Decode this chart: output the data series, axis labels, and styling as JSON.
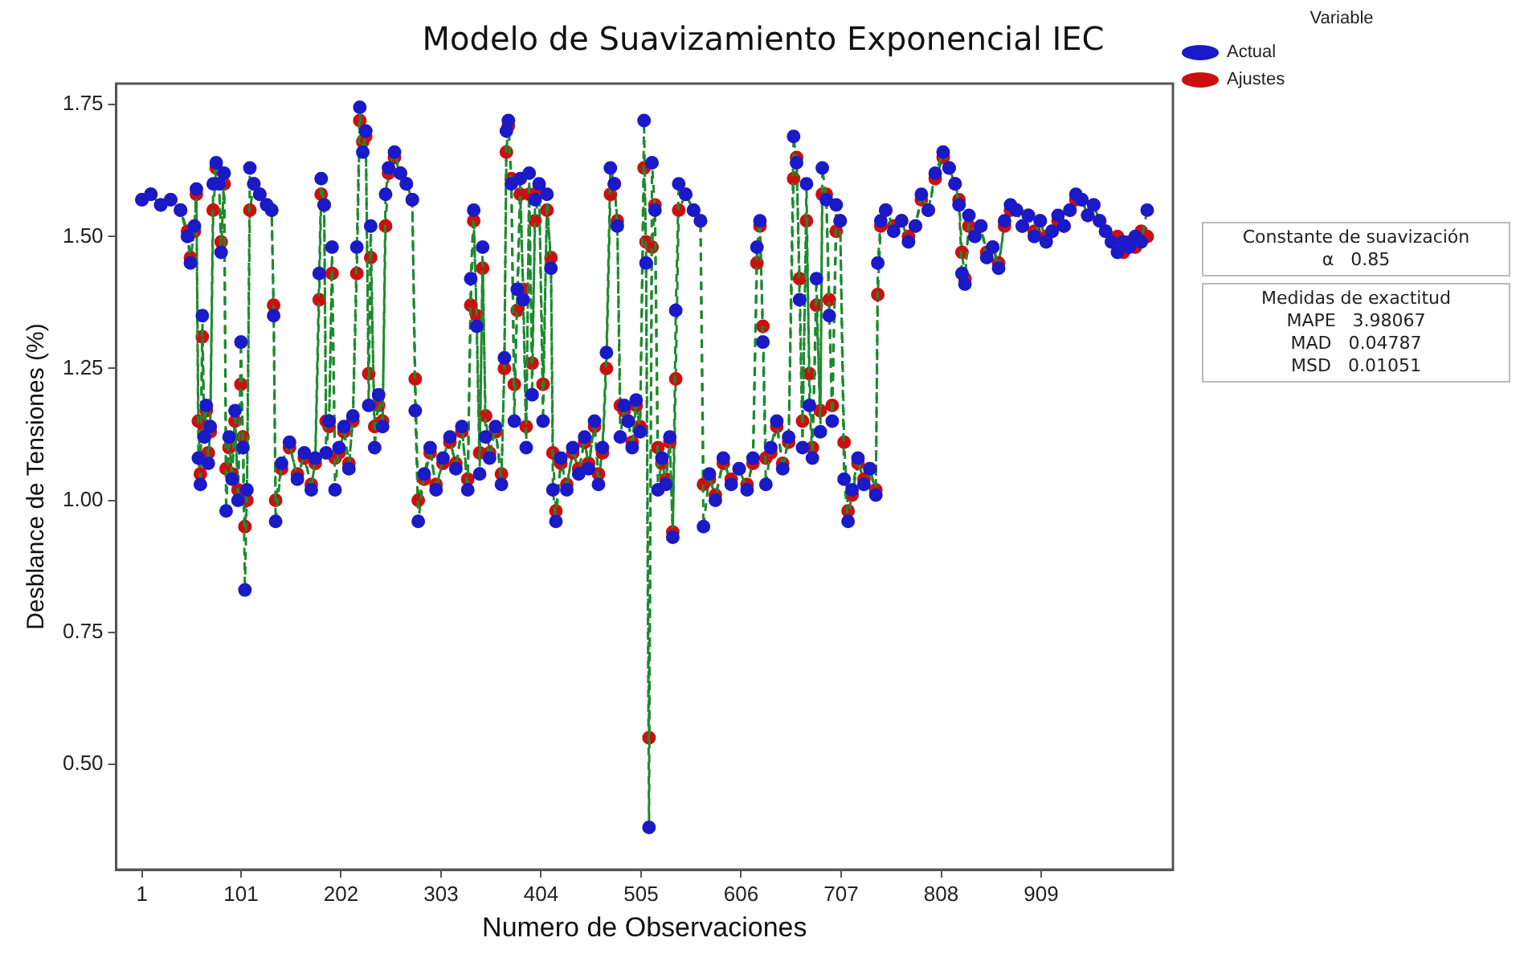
{
  "chart_data": {
    "type": "line",
    "title": "Modelo de Suavizamiento Exponencial IEC",
    "xlabel": "Numero de Observaciones",
    "ylabel": "Desblance de Tensiones (%)",
    "legend_title": "Variable",
    "legend": "top right",
    "grid": false,
    "marker": "circle",
    "line_style": "dashed",
    "xlim": [
      -25,
      1042
    ],
    "xticks": [
      1,
      101,
      202,
      303,
      404,
      505,
      606,
      707,
      808,
      909
    ],
    "ylim": [
      0.3,
      1.79
    ],
    "yticks": [
      {
        "value": 0.5,
        "label": "0.50"
      },
      {
        "value": 0.75,
        "label": "0.75"
      },
      {
        "value": 1,
        "label": "1.00"
      },
      {
        "value": 1.25,
        "label": "1.25"
      },
      {
        "value": 1.5,
        "label": "1.50"
      },
      {
        "value": 1.75,
        "label": "1.75"
      }
    ],
    "annotations": [
      "Constante de suavización",
      "α   0.85",
      "Medidas de exactitud",
      "MAPE   3.98067",
      "MAD   0.04787",
      "MSD   0.01051"
    ],
    "series": [
      {
        "name": "Actual",
        "color": "#1a1ac8",
        "x": [
          1,
          10,
          20,
          30,
          40,
          47,
          50,
          54,
          56,
          58,
          60,
          62,
          64,
          66,
          68,
          70,
          73,
          76,
          79,
          81,
          84,
          86,
          89,
          92,
          95,
          98,
          101,
          103,
          105,
          107,
          110,
          114,
          120,
          127,
          132,
          134,
          136,
          142,
          150,
          158,
          165,
          172,
          176,
          180,
          182,
          185,
          187,
          190,
          193,
          196,
          200,
          205,
          210,
          214,
          218,
          221,
          224,
          227,
          230,
          232,
          236,
          240,
          244,
          247,
          250,
          256,
          262,
          268,
          274,
          277,
          280,
          286,
          292,
          298,
          305,
          312,
          318,
          324,
          330,
          333,
          336,
          339,
          342,
          345,
          348,
          352,
          358,
          364,
          367,
          369,
          371,
          374,
          377,
          380,
          383,
          386,
          389,
          392,
          395,
          398,
          402,
          406,
          410,
          414,
          416,
          419,
          424,
          430,
          436,
          442,
          448,
          452,
          458,
          462,
          466,
          470,
          474,
          478,
          481,
          484,
          488,
          492,
          496,
          500,
          504,
          508,
          510,
          513,
          516,
          519,
          522,
          526,
          530,
          534,
          537,
          540,
          543,
          550,
          558,
          565,
          568,
          574,
          580,
          588,
          596,
          604,
          612,
          618,
          622,
          625,
          628,
          631,
          636,
          642,
          648,
          654,
          659,
          662,
          665,
          668,
          672,
          675,
          678,
          682,
          686,
          688,
          692,
          695,
          698,
          702,
          706,
          710,
          714,
          718,
          724,
          730,
          736,
          742,
          744,
          747,
          752,
          760,
          768,
          775,
          782,
          788,
          795,
          802,
          810,
          816,
          822,
          826,
          829,
          832,
          836,
          842,
          848,
          854,
          860,
          866,
          872,
          878,
          884,
          890,
          896,
          902,
          908,
          914,
          920,
          926,
          932,
          938,
          944,
          950,
          956,
          962,
          968,
          974,
          980,
          986,
          992,
          998,
          1004,
          1010,
          1016
        ],
        "values": [
          1.57,
          1.58,
          1.56,
          1.57,
          1.55,
          1.5,
          1.45,
          1.52,
          1.59,
          1.08,
          1.03,
          1.35,
          1.12,
          1.18,
          1.07,
          1.14,
          1.6,
          1.64,
          1.6,
          1.47,
          1.62,
          0.98,
          1.12,
          1.04,
          1.17,
          1.0,
          1.3,
          1.1,
          0.83,
          1.02,
          1.63,
          1.6,
          1.58,
          1.56,
          1.55,
          1.35,
          0.96,
          1.07,
          1.11,
          1.04,
          1.09,
          1.02,
          1.08,
          1.43,
          1.61,
          1.56,
          1.09,
          1.15,
          1.48,
          1.02,
          1.1,
          1.14,
          1.06,
          1.16,
          1.48,
          1.745,
          1.66,
          1.7,
          1.18,
          1.52,
          1.1,
          1.2,
          1.14,
          1.58,
          1.63,
          1.66,
          1.62,
          1.6,
          1.57,
          1.17,
          0.96,
          1.05,
          1.1,
          1.02,
          1.08,
          1.12,
          1.06,
          1.14,
          1.02,
          1.42,
          1.55,
          1.33,
          1.05,
          1.48,
          1.12,
          1.08,
          1.14,
          1.03,
          1.27,
          1.7,
          1.72,
          1.6,
          1.15,
          1.4,
          1.61,
          1.38,
          1.1,
          1.62,
          1.2,
          1.57,
          1.6,
          1.15,
          1.58,
          1.44,
          1.02,
          0.96,
          1.08,
          1.02,
          1.1,
          1.05,
          1.12,
          1.06,
          1.15,
          1.03,
          1.1,
          1.28,
          1.63,
          1.6,
          1.52,
          1.12,
          1.18,
          1.15,
          1.1,
          1.19,
          1.13,
          1.72,
          1.45,
          0.38,
          1.64,
          1.55,
          1.02,
          1.08,
          1.03,
          1.12,
          0.93,
          1.36,
          1.6,
          1.58,
          1.55,
          1.53,
          0.95,
          1.05,
          1.0,
          1.08,
          1.03,
          1.06,
          1.02,
          1.08,
          1.48,
          1.53,
          1.3,
          1.03,
          1.1,
          1.15,
          1.06,
          1.12,
          1.69,
          1.64,
          1.38,
          1.1,
          1.6,
          1.18,
          1.08,
          1.42,
          1.13,
          1.63,
          1.57,
          1.35,
          1.15,
          1.56,
          1.53,
          1.04,
          0.96,
          1.02,
          1.08,
          1.03,
          1.06,
          1.01,
          1.45,
          1.53,
          1.55,
          1.51,
          1.53,
          1.49,
          1.52,
          1.58,
          1.55,
          1.62,
          1.66,
          1.63,
          1.6,
          1.56,
          1.43,
          1.41,
          1.54,
          1.5,
          1.52,
          1.46,
          1.48,
          1.44,
          1.53,
          1.56,
          1.55,
          1.52,
          1.54,
          1.5,
          1.53,
          1.49,
          1.51,
          1.54,
          1.52,
          1.55,
          1.58,
          1.57,
          1.54,
          1.56,
          1.53,
          1.51,
          1.49,
          1.47,
          1.49,
          1.48,
          1.5,
          1.49,
          1.55
        ]
      },
      {
        "name": "Ajustes",
        "color": "#cc1010",
        "x": [
          1,
          10,
          20,
          30,
          40,
          47,
          50,
          54,
          56,
          58,
          60,
          62,
          64,
          66,
          68,
          70,
          73,
          76,
          79,
          81,
          84,
          86,
          89,
          92,
          95,
          98,
          101,
          103,
          105,
          107,
          110,
          114,
          120,
          127,
          132,
          134,
          136,
          142,
          150,
          158,
          165,
          172,
          176,
          180,
          182,
          185,
          187,
          190,
          193,
          196,
          200,
          205,
          210,
          214,
          218,
          221,
          224,
          227,
          230,
          232,
          236,
          240,
          244,
          247,
          250,
          256,
          262,
          268,
          274,
          277,
          280,
          286,
          292,
          298,
          305,
          312,
          318,
          324,
          330,
          333,
          336,
          339,
          342,
          345,
          348,
          352,
          358,
          364,
          367,
          369,
          371,
          374,
          377,
          380,
          383,
          386,
          389,
          392,
          395,
          398,
          402,
          406,
          410,
          414,
          416,
          419,
          424,
          430,
          436,
          442,
          448,
          452,
          458,
          462,
          466,
          470,
          474,
          478,
          481,
          484,
          488,
          492,
          496,
          500,
          504,
          508,
          510,
          513,
          516,
          519,
          522,
          526,
          530,
          534,
          537,
          540,
          543,
          550,
          558,
          565,
          568,
          574,
          580,
          588,
          596,
          604,
          612,
          618,
          622,
          625,
          628,
          631,
          636,
          642,
          648,
          654,
          659,
          662,
          665,
          668,
          672,
          675,
          678,
          682,
          686,
          688,
          692,
          695,
          698,
          702,
          706,
          710,
          714,
          718,
          724,
          730,
          736,
          742,
          744,
          747,
          752,
          760,
          768,
          775,
          782,
          788,
          795,
          802,
          810,
          816,
          822,
          826,
          829,
          832,
          836,
          842,
          848,
          854,
          860,
          866,
          872,
          878,
          884,
          890,
          896,
          902,
          908,
          914,
          920,
          926,
          932,
          938,
          944,
          950,
          956,
          962,
          968,
          974,
          980,
          986,
          992,
          998,
          1004,
          1010,
          1016
        ],
        "values": [
          1.57,
          1.58,
          1.56,
          1.57,
          1.55,
          1.51,
          1.46,
          1.51,
          1.58,
          1.15,
          1.05,
          1.31,
          1.14,
          1.17,
          1.09,
          1.13,
          1.55,
          1.63,
          1.6,
          1.49,
          1.6,
          1.06,
          1.1,
          1.05,
          1.15,
          1.02,
          1.22,
          1.12,
          0.95,
          1.0,
          1.55,
          1.6,
          1.58,
          1.56,
          1.55,
          1.37,
          1.0,
          1.06,
          1.1,
          1.05,
          1.08,
          1.03,
          1.07,
          1.38,
          1.58,
          1.56,
          1.15,
          1.14,
          1.43,
          1.08,
          1.09,
          1.13,
          1.07,
          1.15,
          1.43,
          1.72,
          1.68,
          1.69,
          1.24,
          1.46,
          1.14,
          1.18,
          1.15,
          1.52,
          1.62,
          1.65,
          1.62,
          1.6,
          1.57,
          1.23,
          1.0,
          1.04,
          1.09,
          1.03,
          1.07,
          1.11,
          1.07,
          1.13,
          1.04,
          1.37,
          1.53,
          1.35,
          1.09,
          1.44,
          1.16,
          1.09,
          1.13,
          1.05,
          1.25,
          1.66,
          1.71,
          1.61,
          1.22,
          1.36,
          1.58,
          1.4,
          1.14,
          1.58,
          1.26,
          1.53,
          1.59,
          1.22,
          1.55,
          1.46,
          1.09,
          0.98,
          1.07,
          1.03,
          1.09,
          1.06,
          1.11,
          1.07,
          1.14,
          1.05,
          1.09,
          1.25,
          1.58,
          1.6,
          1.53,
          1.18,
          1.17,
          1.15,
          1.11,
          1.18,
          1.14,
          1.63,
          1.49,
          0.55,
          1.48,
          1.56,
          1.1,
          1.07,
          1.04,
          1.11,
          0.94,
          1.23,
          1.55,
          1.58,
          1.55,
          1.53,
          1.03,
          1.04,
          1.01,
          1.07,
          1.04,
          1.06,
          1.03,
          1.07,
          1.45,
          1.52,
          1.33,
          1.08,
          1.09,
          1.14,
          1.07,
          1.11,
          1.61,
          1.65,
          1.42,
          1.15,
          1.53,
          1.24,
          1.1,
          1.37,
          1.17,
          1.58,
          1.58,
          1.38,
          1.18,
          1.51,
          1.53,
          1.11,
          0.98,
          1.01,
          1.07,
          1.04,
          1.06,
          1.02,
          1.39,
          1.52,
          1.55,
          1.52,
          1.53,
          1.5,
          1.52,
          1.57,
          1.55,
          1.61,
          1.65,
          1.63,
          1.6,
          1.57,
          1.47,
          1.42,
          1.52,
          1.51,
          1.52,
          1.47,
          1.48,
          1.45,
          1.52,
          1.55,
          1.55,
          1.52,
          1.54,
          1.51,
          1.53,
          1.5,
          1.51,
          1.53,
          1.52,
          1.55,
          1.57,
          1.57,
          1.54,
          1.56,
          1.53,
          1.51,
          1.49,
          1.5,
          1.47,
          1.49,
          1.48,
          1.51,
          1.5
        ]
      }
    ]
  }
}
